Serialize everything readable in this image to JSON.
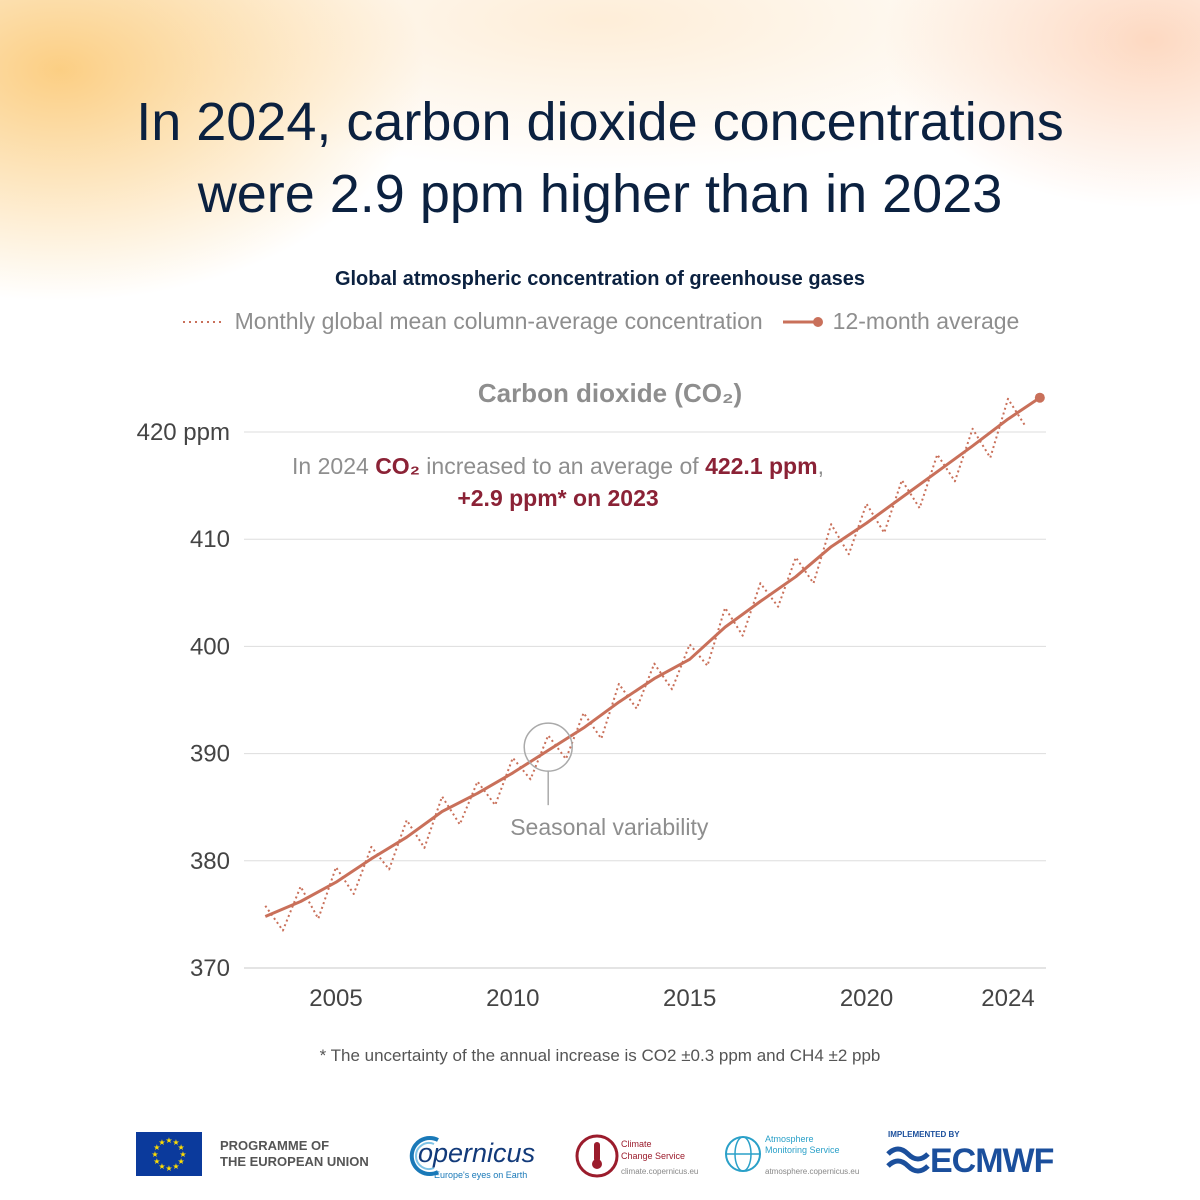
{
  "headline": {
    "line1": "In 2024, carbon dioxide concentrations",
    "line2": "were 2.9 ppm higher than in 2023"
  },
  "subtitle": "Global atmospheric concentration of greenhouse gases",
  "legend": {
    "monthly": "Monthly global mean column-average concentration",
    "average": "12-month average"
  },
  "colors": {
    "line": "#c9705a",
    "highlight": "#8b2236",
    "grid": "#dddddd",
    "title": "#0b2140"
  },
  "chart_data": {
    "type": "line",
    "title": "Carbon dioxide (CO₂)",
    "xlabel": "",
    "ylabel": "",
    "xlim": [
      2003.0,
      2024.9
    ],
    "ylim": [
      370,
      425
    ],
    "x_ticks": [
      {
        "value": 2005,
        "label": "2005"
      },
      {
        "value": 2010,
        "label": "2010"
      },
      {
        "value": 2015,
        "label": "2015"
      },
      {
        "value": 2020,
        "label": "2020"
      },
      {
        "value": 2024,
        "label": "2024"
      }
    ],
    "y_ticks": [
      {
        "value": 370,
        "label": "370"
      },
      {
        "value": 380,
        "label": "380"
      },
      {
        "value": 390,
        "label": "390"
      },
      {
        "value": 400,
        "label": "400"
      },
      {
        "value": 410,
        "label": "410"
      },
      {
        "value": 420,
        "label": "420 ppm"
      }
    ],
    "grid": true,
    "series": [
      {
        "name": "Monthly global mean column-average concentration",
        "style": "dotted",
        "x": [
          2003.0,
          2003.5,
          2004.0,
          2004.5,
          2005.0,
          2005.5,
          2006.0,
          2006.5,
          2007.0,
          2007.5,
          2008.0,
          2008.5,
          2009.0,
          2009.5,
          2010.0,
          2010.5,
          2011.0,
          2011.5,
          2012.0,
          2012.5,
          2013.0,
          2013.5,
          2014.0,
          2014.5,
          2015.0,
          2015.5,
          2016.0,
          2016.5,
          2017.0,
          2017.5,
          2018.0,
          2018.5,
          2019.0,
          2019.5,
          2020.0,
          2020.5,
          2021.0,
          2021.5,
          2022.0,
          2022.5,
          2023.0,
          2023.5,
          2024.0,
          2024.5
        ],
        "values": [
          375.8,
          373.5,
          377.6,
          374.6,
          379.4,
          376.9,
          381.3,
          379.2,
          383.8,
          381.2,
          386.0,
          383.4,
          387.4,
          385.2,
          389.6,
          387.6,
          391.7,
          389.5,
          393.8,
          391.4,
          396.5,
          394.2,
          398.4,
          396.0,
          400.2,
          398.2,
          403.6,
          401.0,
          405.9,
          403.7,
          408.3,
          405.9,
          411.4,
          408.6,
          413.3,
          410.6,
          415.5,
          412.9,
          417.9,
          415.4,
          420.3,
          417.6,
          423.1,
          420.5
        ]
      },
      {
        "name": "12-month average",
        "style": "solid",
        "x": [
          2003.0,
          2004.0,
          2005.0,
          2006.0,
          2007.0,
          2008.0,
          2009.0,
          2010.0,
          2011.0,
          2012.0,
          2013.0,
          2014.0,
          2015.0,
          2016.0,
          2017.0,
          2018.0,
          2019.0,
          2020.0,
          2021.0,
          2022.0,
          2023.0,
          2024.0,
          2024.9
        ],
        "values": [
          374.8,
          376.2,
          378.0,
          380.2,
          382.2,
          384.6,
          386.3,
          388.2,
          390.3,
          392.4,
          394.8,
          397.0,
          398.8,
          401.8,
          404.2,
          406.5,
          409.3,
          411.5,
          413.9,
          416.3,
          418.7,
          421.2,
          423.2
        ]
      }
    ],
    "annotations": {
      "text_prefix": "In 2024 ",
      "text_co2": "CO₂",
      "text_middle": " increased to an average of ",
      "text_value": "422.1 ppm",
      "text_comma": ",",
      "text_line2": "+2.9 ppm* on 2023",
      "seasonal_label": "Seasonal variability",
      "seasonal_x": 2011.0,
      "seasonal_y": 390.6
    }
  },
  "footnote": "* The uncertainty of the annual increase is CO2 ±0.3 ppm and CH4 ±2 ppb",
  "logos": {
    "eu_line1": "PROGRAMME OF",
    "eu_line2": "THE EUROPEAN UNION",
    "copernicus_word": "opernicus",
    "copernicus_tag": "Europe's eyes on Earth",
    "c3s_line1": "Climate",
    "c3s_line2": "Change Service",
    "c3s_url": "climate.copernicus.eu",
    "cams_line1": "Atmosphere",
    "cams_line2": "Monitoring Service",
    "cams_url": "atmosphere.copernicus.eu",
    "ecmwf_impl": "IMPLEMENTED BY",
    "ecmwf_word": "ECMWF"
  }
}
